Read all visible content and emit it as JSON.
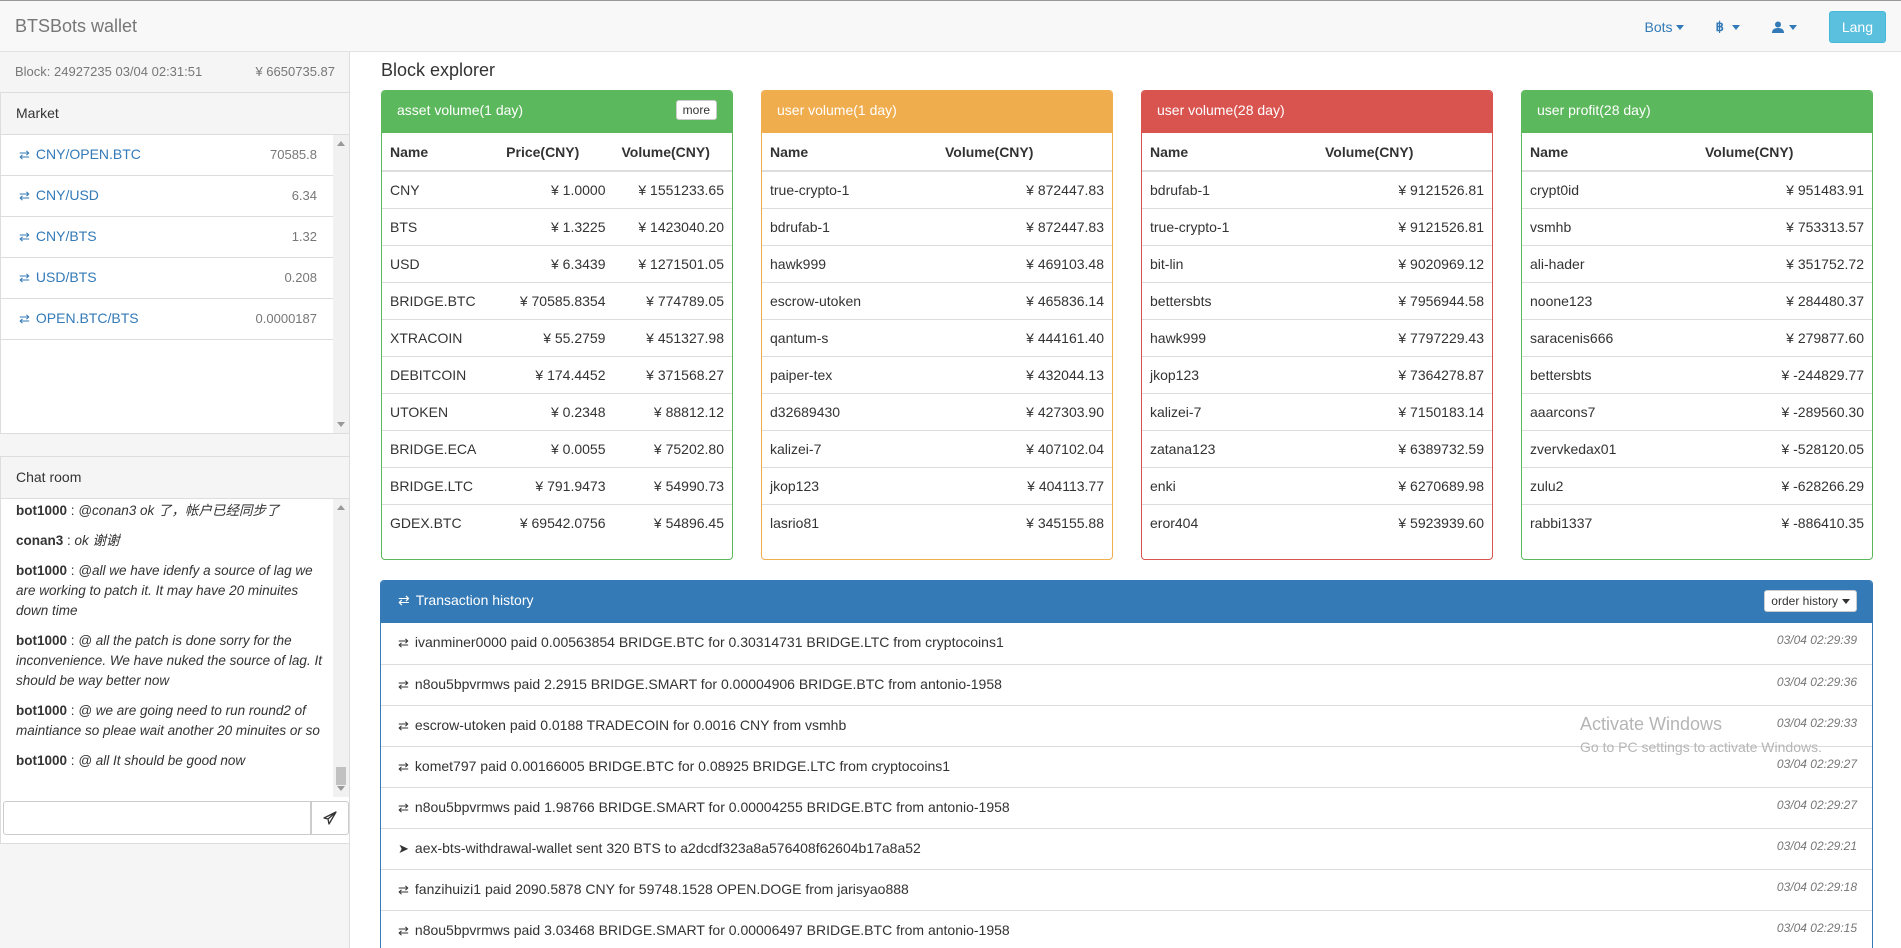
{
  "navbar": {
    "brand": "BTSBots wallet",
    "bots_label": "Bots",
    "bitcoin_icon": "bitcoin-icon",
    "user_icon": "user-icon",
    "lang_label": "Lang"
  },
  "sidebar": {
    "block_info": "Block: 24927235 03/04 02:31:51",
    "balance": "¥ 6650735.87",
    "market": {
      "title": "Market",
      "items": [
        {
          "pair": "CNY/OPEN.BTC",
          "value": "70585.8"
        },
        {
          "pair": "CNY/USD",
          "value": "6.34"
        },
        {
          "pair": "CNY/BTS",
          "value": "1.32"
        },
        {
          "pair": "USD/BTS",
          "value": "0.208"
        },
        {
          "pair": "OPEN.BTC/BTS",
          "value": "0.0000187"
        }
      ]
    },
    "chat": {
      "title": "Chat room",
      "messages": [
        {
          "user": "bot1000",
          "text": "@conan3 ok 了，帐户已经同步了"
        },
        {
          "user": "conan3",
          "text": "ok 谢谢"
        },
        {
          "user": "bot1000",
          "text": "@all we have idenfy a source of lag we are working to patch it. It may have 20 minuites down time"
        },
        {
          "user": "bot1000",
          "text": "@ all the patch is done sorry for the inconvenience. We have nuked the source of lag. It should be way better now"
        },
        {
          "user": "bot1000",
          "text": "@ we are going need to run round2 of maintiance so pleae wait another 20 minuites or so"
        },
        {
          "user": "bot1000",
          "text": "@ all It should be good now"
        }
      ],
      "input_placeholder": ""
    }
  },
  "main": {
    "title": "Block explorer",
    "asset_volume": {
      "title": "asset volume(1 day)",
      "more_label": "more",
      "headers": [
        "Name",
        "Price(CNY)",
        "Volume(CNY)"
      ],
      "rows": [
        [
          "CNY",
          "¥ 1.0000",
          "¥ 1551233.65"
        ],
        [
          "BTS",
          "¥ 1.3225",
          "¥ 1423040.20"
        ],
        [
          "USD",
          "¥ 6.3439",
          "¥ 1271501.05"
        ],
        [
          "BRIDGE.BTC",
          "¥ 70585.8354",
          "¥ 774789.05"
        ],
        [
          "XTRACOIN",
          "¥ 55.2759",
          "¥ 451327.98"
        ],
        [
          "DEBITCOIN",
          "¥ 174.4452",
          "¥ 371568.27"
        ],
        [
          "UTOKEN",
          "¥ 0.2348",
          "¥ 88812.12"
        ],
        [
          "BRIDGE.ECA",
          "¥ 0.0055",
          "¥ 75202.80"
        ],
        [
          "BRIDGE.LTC",
          "¥ 791.9473",
          "¥ 54990.73"
        ],
        [
          "GDEX.BTC",
          "¥ 69542.0756",
          "¥ 54896.45"
        ]
      ]
    },
    "user_volume_1d": {
      "title": "user volume(1 day)",
      "headers": [
        "Name",
        "Volume(CNY)"
      ],
      "rows": [
        [
          "true-crypto-1",
          "¥ 872447.83"
        ],
        [
          "bdrufab-1",
          "¥ 872447.83"
        ],
        [
          "hawk999",
          "¥ 469103.48"
        ],
        [
          "escrow-utoken",
          "¥ 465836.14"
        ],
        [
          "qantum-s",
          "¥ 444161.40"
        ],
        [
          "paiper-tex",
          "¥ 432044.13"
        ],
        [
          "d32689430",
          "¥ 427303.90"
        ],
        [
          "kalizei-7",
          "¥ 407102.04"
        ],
        [
          "jkop123",
          "¥ 404113.77"
        ],
        [
          "lasrio81",
          "¥ 345155.88"
        ]
      ]
    },
    "user_volume_28d": {
      "title": "user volume(28 day)",
      "headers": [
        "Name",
        "Volume(CNY)"
      ],
      "rows": [
        [
          "bdrufab-1",
          "¥ 9121526.81"
        ],
        [
          "true-crypto-1",
          "¥ 9121526.81"
        ],
        [
          "bit-lin",
          "¥ 9020969.12"
        ],
        [
          "bettersbts",
          "¥ 7956944.58"
        ],
        [
          "hawk999",
          "¥ 7797229.43"
        ],
        [
          "jkop123",
          "¥ 7364278.87"
        ],
        [
          "kalizei-7",
          "¥ 7150183.14"
        ],
        [
          "zatana123",
          "¥ 6389732.59"
        ],
        [
          "enki",
          "¥ 6270689.98"
        ],
        [
          "eror404",
          "¥ 5923939.60"
        ]
      ]
    },
    "user_profit_28d": {
      "title": "user profit(28 day)",
      "headers": [
        "Name",
        "Volume(CNY)"
      ],
      "rows": [
        [
          "crypt0id",
          "¥ 951483.91"
        ],
        [
          "vsmhb",
          "¥ 753313.57"
        ],
        [
          "ali-hader",
          "¥ 351752.72"
        ],
        [
          "noone123",
          "¥ 284480.37"
        ],
        [
          "saracenis666",
          "¥ 279877.60"
        ],
        [
          "bettersbts",
          "¥ -244829.77"
        ],
        [
          "aaarcons7",
          "¥ -289560.30"
        ],
        [
          "zvervkedax01",
          "¥ -528120.05"
        ],
        [
          "zulu2",
          "¥ -628266.29"
        ],
        [
          "rabbi1337",
          "¥ -886410.35"
        ]
      ]
    },
    "transactions": {
      "title": "Transaction history",
      "order_history_label": "order history",
      "rows": [
        {
          "icon": "exchange-icon",
          "text": "ivanminer0000 paid 0.00563854 BRIDGE.BTC for 0.30314731 BRIDGE.LTC from cryptocoins1",
          "time": "03/04 02:29:39"
        },
        {
          "icon": "exchange-icon",
          "text": "n8ou5bpvrmws paid 2.2915 BRIDGE.SMART for 0.00004906 BRIDGE.BTC from antonio-1958",
          "time": "03/04 02:29:36"
        },
        {
          "icon": "exchange-icon",
          "text": "escrow-utoken paid 0.0188 TRADECOIN for 0.0016 CNY from vsmhb",
          "time": "03/04 02:29:33"
        },
        {
          "icon": "exchange-icon",
          "text": "komet797 paid 0.00166005 BRIDGE.BTC for 0.08925 BRIDGE.LTC from cryptocoins1",
          "time": "03/04 02:29:27"
        },
        {
          "icon": "exchange-icon",
          "text": "n8ou5bpvrmws paid 1.98766 BRIDGE.SMART for 0.00004255 BRIDGE.BTC from antonio-1958",
          "time": "03/04 02:29:27"
        },
        {
          "icon": "send-icon",
          "text": "aex-bts-withdrawal-wallet sent 320 BTS to a2dcdf323a8a576408f62604b17a8a52",
          "time": "03/04 02:29:21"
        },
        {
          "icon": "exchange-icon",
          "text": "fanzihuizi1 paid 2090.5878 CNY for 59748.1528 OPEN.DOGE from jarisyao888",
          "time": "03/04 02:29:18"
        },
        {
          "icon": "exchange-icon",
          "text": "n8ou5bpvrmws paid 3.03468 BRIDGE.SMART for 0.00006497 BRIDGE.BTC from antonio-1958",
          "time": "03/04 02:29:15"
        }
      ]
    }
  },
  "watermark": {
    "line1": "Activate Windows",
    "line2": "Go to PC settings to activate Windows."
  },
  "colors": {
    "primary": "#337ab7",
    "success": "#5cb85c",
    "warning": "#f0ad4e",
    "danger": "#d9534f",
    "info": "#5bc0de"
  }
}
